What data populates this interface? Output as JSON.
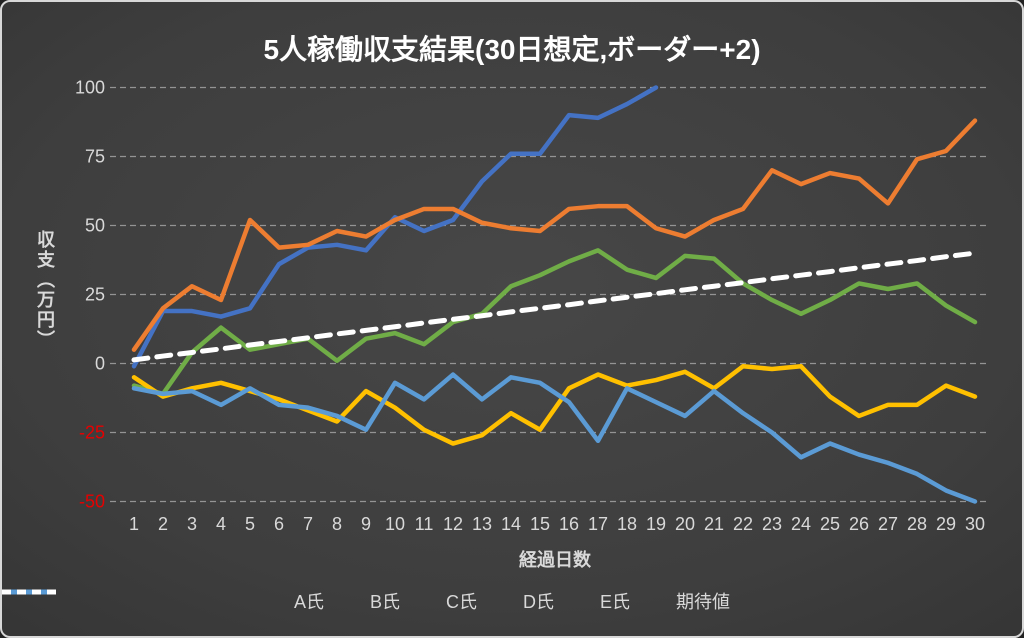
{
  "chart_data": {
    "type": "line",
    "title": "5人稼働収支結果(30日想定,ボーダー+2)",
    "xlabel": "経過日数",
    "ylabel": "収支（万円）",
    "x": [
      1,
      2,
      3,
      4,
      5,
      6,
      7,
      8,
      9,
      10,
      11,
      12,
      13,
      14,
      15,
      16,
      17,
      18,
      19,
      20,
      21,
      22,
      23,
      24,
      25,
      26,
      27,
      28,
      29,
      30
    ],
    "ylim": [
      -50,
      100
    ],
    "yticks": [
      100,
      75,
      50,
      25,
      0,
      -25,
      -50
    ],
    "grid": "horizontal-dashed",
    "legend_position": "bottom",
    "axis_text_color": "#d9d9d9",
    "negative_tick_color": "#e60000",
    "gridline_color": "#949494",
    "series": [
      {
        "id": "a",
        "name": "A氏",
        "color": "#4472C4",
        "dash": null,
        "values": [
          -1,
          19,
          19,
          17,
          20,
          36,
          42,
          43,
          41,
          53,
          48,
          52,
          66,
          76,
          76,
          90,
          89,
          94,
          100,
          null,
          null,
          null,
          null,
          null,
          null,
          null,
          null,
          null,
          null,
          null
        ]
      },
      {
        "id": "b",
        "name": "B氏",
        "color": "#ED7D31",
        "dash": null,
        "values": [
          5,
          20,
          28,
          23,
          52,
          42,
          43,
          48,
          46,
          52,
          56,
          56,
          51,
          49,
          48,
          56,
          57,
          57,
          49,
          46,
          52,
          56,
          70,
          65,
          69,
          67,
          58,
          74,
          77,
          88
        ]
      },
      {
        "id": "c",
        "name": "C氏",
        "color": "#70AD47",
        "dash": null,
        "values": [
          -8,
          -11,
          4,
          13,
          5,
          7,
          9,
          1,
          9,
          11,
          7,
          15,
          18,
          28,
          32,
          37,
          41,
          34,
          31,
          39,
          38,
          29,
          23,
          18,
          23,
          29,
          27,
          29,
          21,
          15
        ]
      },
      {
        "id": "d",
        "name": "D氏",
        "color": "#FFC000",
        "dash": null,
        "values": [
          -5,
          -12,
          -9,
          -7,
          -10,
          -13,
          -17,
          -21,
          -10,
          -16,
          -24,
          -29,
          -26,
          -18,
          -24,
          -9,
          -4,
          -8,
          -6,
          -3,
          -9,
          -1,
          -2,
          -1,
          -12,
          -19,
          -15,
          -15,
          -8,
          -12
        ]
      },
      {
        "id": "e",
        "name": "E氏",
        "color": "#5B9BD5",
        "dash": null,
        "values": [
          -9,
          -11,
          -10,
          -15,
          -9,
          -15,
          -16,
          -19,
          -24,
          -7,
          -13,
          -4,
          -13,
          -5,
          -7,
          -14,
          -28,
          -9,
          -14,
          -19,
          -10,
          -18,
          -25,
          -34,
          -29,
          -33,
          -36,
          -40,
          -46,
          -50
        ]
      },
      {
        "id": "expected",
        "name": "期待値",
        "color": "#FFFFFF",
        "dash": [
          14,
          9
        ],
        "values": [
          1.3,
          2.7,
          4,
          5.3,
          6.7,
          8,
          9.3,
          10.7,
          12,
          13.3,
          14.7,
          16,
          17.3,
          18.7,
          20,
          21.3,
          22.7,
          24,
          25.3,
          26.7,
          28,
          29.3,
          30.7,
          32,
          33.3,
          34.7,
          36,
          37.3,
          38.7,
          40
        ]
      }
    ]
  }
}
